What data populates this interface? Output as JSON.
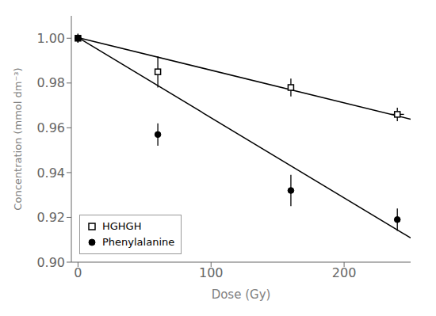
{
  "chart_data": {
    "type": "scatter",
    "xlabel": "Dose (Gy)",
    "ylabel": "Concentration (mmol dm⁻³)",
    "xlim": [
      -5,
      250
    ],
    "ylim": [
      0.9,
      1.01
    ],
    "xticks": [
      0,
      100,
      200
    ],
    "yticks": [
      {
        "value": 0.9,
        "label": "0.90"
      },
      0.92,
      0.94,
      0.96,
      0.98,
      {
        "value": 1.0,
        "label": "1.00"
      }
    ],
    "grid": false,
    "legend": "lower left",
    "series": [
      {
        "name": "HGHGH",
        "type": "scatter",
        "marker": "square",
        "color": "black",
        "x": [
          0,
          60,
          160,
          240
        ],
        "values": [
          1.0,
          0.985,
          0.978,
          0.966
        ],
        "yerr": [
          0.002,
          0.007,
          0.004,
          0.003
        ],
        "xerr": [
          0,
          0,
          0,
          5
        ]
      },
      {
        "name": "Phenylalanine",
        "type": "scatter",
        "marker": "circle",
        "color": "black",
        "x": [
          0,
          60,
          160,
          240
        ],
        "values": [
          1.0,
          0.957,
          0.932,
          0.919
        ],
        "yerr": [
          0.002,
          0.005,
          0.007,
          0.005
        ]
      },
      {
        "type": "line",
        "color": "black",
        "x": [
          0,
          250
        ],
        "values": [
          1.0003,
          0.96385
        ]
      },
      {
        "type": "line",
        "color": "black",
        "x": [
          0,
          250
        ],
        "values": [
          1.0003,
          0.9108
        ]
      }
    ]
  }
}
